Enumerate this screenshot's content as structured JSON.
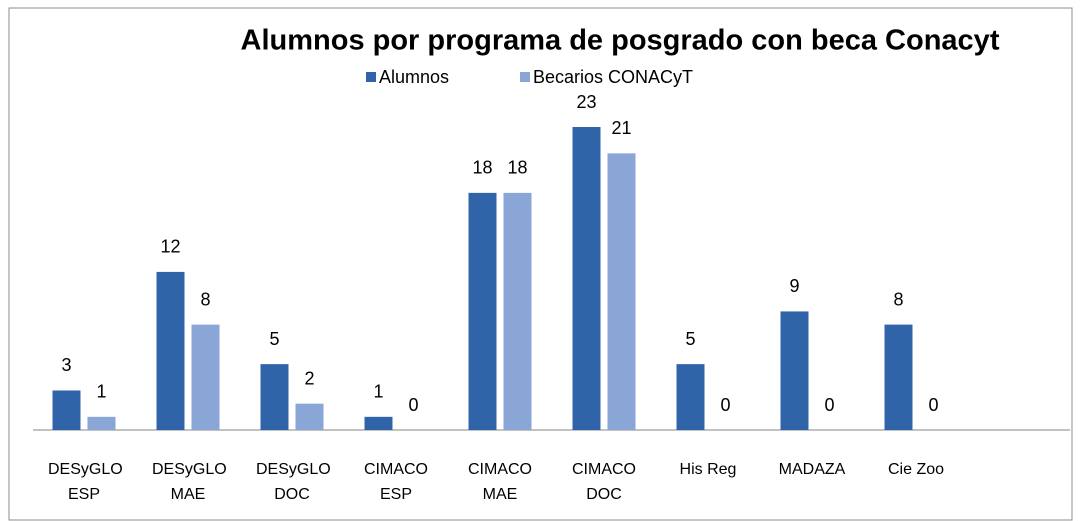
{
  "chart_data": {
    "type": "bar",
    "title": "Alumnos por programa de posgrado con beca Conacyt",
    "categories": [
      "DESyGLO ESP",
      "DESyGLO MAE",
      "DESyGLO DOC",
      "CIMACO ESP",
      "CIMACO MAE",
      "CIMACO DOC",
      "His Reg",
      "MADAZA",
      "Cie Zoo"
    ],
    "series": [
      {
        "name": "Alumnos",
        "color": "#2f64a8",
        "values": [
          3,
          12,
          5,
          1,
          18,
          23,
          5,
          9,
          8
        ]
      },
      {
        "name": "Becarios CONACyT",
        "color": "#8aa6d6",
        "values": [
          1,
          8,
          2,
          0,
          18,
          21,
          0,
          0,
          0
        ]
      }
    ],
    "legend": "top"
  }
}
